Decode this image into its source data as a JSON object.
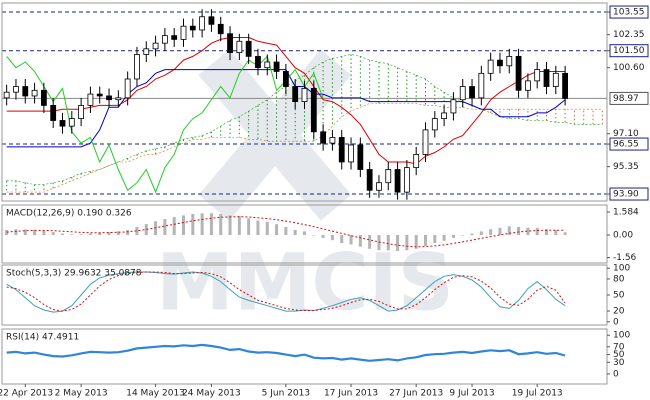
{
  "chart_data": [
    {
      "type": "candlestick",
      "open": [
        99.0,
        99.3,
        99.6,
        99.1,
        99.4,
        98.6,
        97.8,
        97.5,
        97.9,
        98.6,
        99.2,
        99.1,
        98.9,
        99.0,
        100.0,
        101.3,
        101.6,
        101.9,
        102.3,
        102.1,
        102.8,
        102.6,
        103.3,
        102.9,
        102.4,
        101.4,
        102.0,
        101.2,
        100.6,
        100.9,
        100.4,
        99.6,
        98.8,
        99.5,
        97.2,
        96.6,
        96.9,
        95.6,
        96.5,
        95.2,
        94.1,
        94.5,
        95.2,
        94.0,
        95.3,
        96.0,
        97.3,
        97.9,
        98.2,
        98.9,
        99.6,
        99.0,
        100.3,
        101.0,
        100.7,
        101.2,
        99.4,
        99.9,
        100.5,
        99.6,
        100.3
      ],
      "high": [
        99.7,
        100.0,
        100.0,
        99.8,
        99.8,
        99.0,
        98.2,
        98.3,
        99.0,
        99.6,
        99.6,
        99.5,
        99.4,
        100.4,
        101.7,
        102.0,
        102.3,
        102.7,
        102.7,
        103.2,
        103.2,
        103.7,
        103.7,
        103.3,
        102.8,
        102.4,
        102.4,
        101.6,
        101.3,
        101.3,
        100.8,
        100.0,
        99.9,
        99.9,
        97.6,
        97.3,
        97.3,
        96.9,
        96.9,
        95.6,
        94.9,
        95.6,
        95.6,
        95.7,
        96.4,
        97.7,
        98.3,
        98.6,
        99.3,
        100.0,
        100.0,
        100.7,
        101.4,
        101.4,
        101.6,
        101.6,
        100.3,
        100.9,
        100.9,
        100.7,
        100.7
      ],
      "low": [
        98.6,
        98.9,
        98.7,
        98.7,
        98.2,
        97.4,
        97.1,
        97.1,
        97.5,
        98.2,
        98.7,
        98.5,
        98.5,
        98.6,
        99.6,
        100.9,
        101.2,
        101.5,
        101.7,
        101.7,
        102.2,
        102.2,
        102.5,
        102.0,
        101.0,
        101.0,
        100.8,
        100.2,
        100.2,
        100.0,
        99.2,
        98.4,
        98.4,
        96.8,
        96.2,
        96.2,
        95.2,
        95.2,
        94.8,
        93.7,
        93.7,
        94.1,
        93.6,
        93.6,
        94.9,
        95.6,
        96.9,
        97.5,
        97.8,
        98.5,
        98.6,
        98.6,
        99.9,
        100.3,
        100.3,
        99.0,
        99.0,
        99.5,
        99.2,
        99.2,
        98.6
      ],
      "close": [
        99.3,
        99.6,
        99.1,
        99.4,
        98.6,
        97.8,
        97.5,
        97.9,
        98.6,
        99.2,
        99.1,
        98.9,
        99.0,
        100.0,
        101.3,
        101.6,
        101.9,
        102.3,
        102.1,
        102.8,
        102.6,
        103.3,
        102.9,
        102.4,
        101.4,
        102.0,
        101.2,
        100.6,
        100.9,
        100.4,
        99.6,
        98.8,
        99.5,
        97.2,
        96.6,
        96.9,
        95.6,
        96.5,
        95.2,
        94.1,
        94.5,
        95.2,
        94.0,
        95.3,
        96.0,
        97.3,
        97.9,
        98.2,
        98.9,
        99.6,
        99.0,
        100.3,
        101.0,
        100.7,
        101.2,
        99.4,
        99.9,
        100.5,
        99.6,
        100.3,
        98.97
      ],
      "up_color": "#ffffff",
      "down_color": "#000000",
      "lines": [
        {
          "color": "#e00000",
          "values": [
            98.3,
            98.3,
            98.3,
            98.3,
            98.3,
            98.3,
            98.4,
            98.4,
            98.4,
            98.5,
            98.6,
            98.6,
            98.6,
            98.9,
            99.4,
            99.6,
            100.0,
            100.2,
            100.5,
            101.0,
            101.2,
            101.5,
            101.9,
            102.1,
            102.2,
            102.2,
            102.2,
            102.0,
            101.9,
            101.8,
            101.2,
            100.6,
            100.3,
            99.6,
            98.9,
            98.8,
            98.5,
            98.1,
            97.6,
            96.8,
            96.0,
            95.6,
            95.6,
            95.6,
            95.5,
            95.9,
            96.1,
            96.4,
            96.8,
            97.0,
            97.6,
            98.2,
            98.9,
            99.3,
            99.6,
            99.9,
            100.2,
            100.4,
            100.4,
            100.4,
            100.4
          ]
        },
        {
          "color": "#0000c8",
          "values": [
            96.4,
            96.4,
            96.4,
            96.4,
            96.4,
            96.4,
            96.4,
            96.4,
            96.4,
            96.6,
            97.3,
            98.5,
            98.5,
            99.2,
            99.6,
            99.8,
            100.3,
            100.5,
            100.5,
            100.5,
            100.5,
            100.5,
            100.5,
            100.5,
            100.5,
            100.5,
            100.5,
            100.5,
            100.5,
            100.5,
            100.5,
            99.6,
            99.6,
            99.2,
            99.2,
            99.0,
            99.0,
            99.0,
            99.0,
            98.8,
            98.8,
            98.8,
            98.8,
            98.8,
            98.8,
            98.8,
            98.8,
            98.8,
            98.8,
            98.8,
            98.6,
            98.4,
            98.4,
            98.0,
            98.0,
            98.0,
            98.0,
            98.2,
            98.2,
            98.5,
            98.9
          ]
        },
        {
          "color": "#22cc22",
          "values": [
            101.2,
            100.6,
            100.9,
            100.4,
            99.6,
            98.8,
            99.5,
            97.2,
            96.6,
            96.9,
            95.6,
            96.5,
            95.2,
            94.1,
            94.5,
            95.2,
            94.0,
            95.3,
            96.0,
            97.3,
            97.9,
            98.2,
            98.9,
            99.6,
            99.0,
            100.3,
            101.0,
            100.7,
            101.2,
            99.4,
            99.9,
            100.5,
            99.6,
            100.3,
            98.97,
            null,
            null,
            null,
            null,
            null,
            null,
            null,
            null,
            null,
            null,
            null,
            null,
            null,
            null,
            null,
            null,
            null,
            null,
            null,
            null,
            null,
            null,
            null,
            null,
            null,
            null
          ]
        }
      ],
      "cloud": {
        "span_a": [
          94.6,
          94.6,
          94.5,
          94.4,
          94.4,
          94.5,
          94.6,
          94.8,
          95.0,
          95.1,
          95.2,
          95.4,
          95.6,
          95.8,
          96.0,
          96.2,
          96.3,
          96.4,
          96.6,
          96.8,
          96.9,
          97.0,
          97.2,
          97.5,
          97.8,
          98.0,
          98.3,
          98.6,
          98.9,
          99.3,
          99.6,
          99.9,
          100.2,
          100.6,
          100.9,
          101.1,
          101.2,
          101.3,
          101.2,
          101.0,
          100.9,
          100.8,
          100.6,
          100.4,
          100.2,
          100.0,
          99.6,
          99.3,
          99.0,
          98.8,
          98.6,
          98.4,
          98.2,
          98.0,
          97.9,
          97.9,
          97.8,
          97.8,
          97.8,
          97.7,
          97.7,
          97.6,
          97.6,
          97.6,
          97.6
        ],
        "span_b": [
          94.0,
          94.0,
          94.0,
          94.0,
          94.0,
          94.2,
          94.4,
          94.6,
          94.8,
          95.0,
          95.2,
          95.4,
          95.6,
          95.6,
          95.8,
          96.0,
          96.0,
          96.2,
          96.4,
          96.6,
          96.8,
          96.8,
          96.9,
          96.9,
          96.9,
          96.9,
          96.8,
          96.8,
          96.7,
          96.7,
          96.7,
          96.7,
          96.7,
          96.7,
          97.0,
          97.5,
          98.0,
          98.3,
          98.5,
          98.7,
          98.7,
          98.7,
          98.7,
          98.7,
          98.7,
          98.6,
          98.6,
          98.5,
          98.5,
          98.5,
          98.4,
          98.4,
          98.4,
          98.4,
          98.4,
          98.4,
          98.4,
          98.4,
          98.4,
          98.4,
          98.4,
          98.4,
          98.4,
          98.4,
          98.4
        ],
        "up_color": "#1a9a1a",
        "down_color": "#d2691e"
      },
      "levels": [
        103.55,
        101.5,
        96.55,
        93.9
      ],
      "level_color": "#1a237e",
      "watermark": "MMCIS",
      "ylim": [
        93.53,
        104.03
      ],
      "yticks": [
        103.55,
        102.35,
        {
          "value": 101.5,
          "label": "101.50"
        },
        {
          "value": 100.6,
          "label": "100.60"
        },
        {
          "value": 97.1,
          "label": "97.10"
        },
        96.55,
        95.35,
        {
          "value": 93.9,
          "label": "93.90"
        }
      ]
    },
    {
      "type": "macd",
      "title": "MACD(12,26,9) 0.190 0.326",
      "histogram": [
        0.35,
        0.4,
        0.38,
        0.36,
        0.3,
        0.2,
        0.1,
        0.05,
        0.05,
        0.1,
        0.15,
        0.2,
        0.25,
        0.35,
        0.55,
        0.75,
        0.95,
        1.1,
        1.25,
        1.35,
        1.45,
        1.5,
        1.5,
        1.45,
        1.35,
        1.3,
        1.15,
        1.0,
        0.9,
        0.75,
        0.55,
        0.35,
        0.25,
        0.0,
        -0.2,
        -0.35,
        -0.55,
        -0.65,
        -0.8,
        -0.95,
        -1.05,
        -1.05,
        -1.1,
        -1.05,
        -0.95,
        -0.75,
        -0.55,
        -0.4,
        -0.2,
        0.0,
        0.1,
        0.25,
        0.4,
        0.5,
        0.6,
        0.55,
        0.5,
        0.5,
        0.4,
        0.35,
        0.19
      ],
      "signal": [
        0.2,
        0.25,
        0.3,
        0.32,
        0.32,
        0.3,
        0.26,
        0.22,
        0.18,
        0.16,
        0.16,
        0.17,
        0.19,
        0.22,
        0.29,
        0.38,
        0.5,
        0.62,
        0.74,
        0.86,
        0.98,
        1.08,
        1.16,
        1.22,
        1.25,
        1.26,
        1.24,
        1.19,
        1.13,
        1.06,
        0.96,
        0.84,
        0.72,
        0.58,
        0.42,
        0.27,
        0.11,
        -0.04,
        -0.19,
        -0.34,
        -0.48,
        -0.6,
        -0.7,
        -0.77,
        -0.81,
        -0.8,
        -0.75,
        -0.68,
        -0.58,
        -0.47,
        -0.35,
        -0.23,
        -0.11,
        0.01,
        0.12,
        0.21,
        0.27,
        0.31,
        0.33,
        0.33,
        0.326
      ],
      "histogram_color": "#b4b4b4",
      "signal_color": "#d01010",
      "ylim": [
        -1.93,
        2.07
      ],
      "yticks": [
        1.584,
        {
          "value": 0,
          "label": "0.00"
        },
        -1.56
      ]
    },
    {
      "type": "stochastic",
      "title": "Stoch(5,3,3) 29.9632 35.0878",
      "k": [
        70,
        60,
        45,
        30,
        22,
        18,
        20,
        30,
        50,
        70,
        82,
        87,
        90,
        92,
        93,
        93,
        92,
        90,
        89,
        91,
        93,
        91,
        85,
        75,
        60,
        46,
        40,
        35,
        30,
        25,
        20,
        20,
        22,
        21,
        25,
        30,
        36,
        42,
        45,
        40,
        30,
        20,
        22,
        30,
        45,
        60,
        75,
        85,
        88,
        85,
        78,
        65,
        45,
        28,
        25,
        40,
        62,
        75,
        60,
        42,
        30
      ],
      "d": [
        65,
        62,
        55,
        45,
        32,
        23,
        20,
        23,
        33,
        50,
        67,
        79,
        86,
        90,
        92,
        93,
        93,
        92,
        90,
        90,
        91,
        92,
        90,
        84,
        73,
        60,
        50,
        40,
        35,
        30,
        25,
        22,
        21,
        21,
        23,
        25,
        30,
        36,
        41,
        42,
        38,
        30,
        24,
        24,
        32,
        45,
        60,
        73,
        83,
        86,
        84,
        76,
        63,
        46,
        33,
        31,
        42,
        59,
        66,
        59,
        35
      ],
      "k_color": "#3aa0b8",
      "d_color": "#d01010",
      "ylim": [
        -6,
        106
      ],
      "yticks": [
        100,
        80,
        50,
        20,
        0
      ]
    },
    {
      "type": "rsi",
      "title": "RSI(14) 47.4911",
      "values": [
        55,
        57,
        53,
        55,
        50,
        46,
        45,
        48,
        53,
        57,
        56,
        55,
        56,
        60,
        66,
        68,
        70,
        72,
        71,
        74,
        72,
        75,
        72,
        68,
        62,
        64,
        58,
        55,
        56,
        54,
        50,
        46,
        50,
        42,
        40,
        41,
        37,
        40,
        37,
        34,
        36,
        38,
        35,
        40,
        43,
        49,
        51,
        52,
        55,
        57,
        54,
        58,
        61,
        59,
        61,
        51,
        53,
        56,
        52,
        54,
        47.49
      ],
      "color": "#2f86d8",
      "ylim": [
        -26,
        116
      ],
      "yticks": [
        100,
        70,
        50,
        30,
        0
      ],
      "xlim": [
        -0.5,
        64.5
      ],
      "xticks": [
        {
          "value": 2,
          "label": "22 Apr 2013"
        },
        {
          "value": 8,
          "label": "2 May 2013"
        },
        {
          "value": 16,
          "label": "14 May 2013"
        },
        {
          "value": 22,
          "label": "24 May 2013"
        },
        {
          "value": 30,
          "label": "5 Jun 2013"
        },
        {
          "value": 37,
          "label": "17 Jun 2013"
        },
        {
          "value": 44,
          "label": "27 Jun 2013"
        },
        {
          "value": 50,
          "label": "9 Jul 2013"
        },
        {
          "value": 57,
          "label": "19 Jul 2013"
        }
      ]
    }
  ]
}
